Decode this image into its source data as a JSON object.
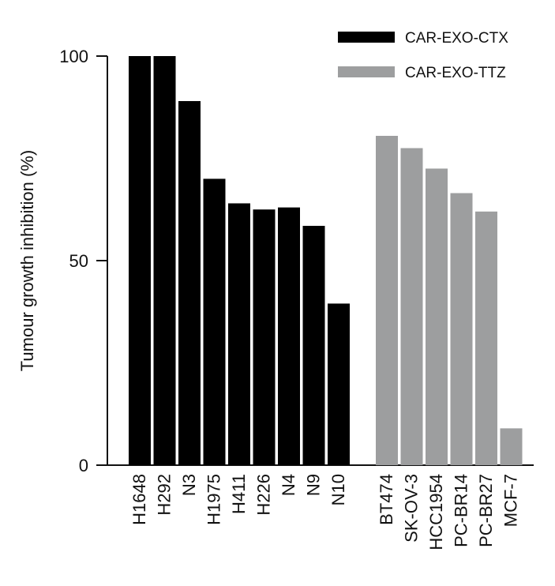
{
  "chart_data": {
    "type": "bar",
    "ylabel": "Tumour growth inhibition (%)",
    "xlabel": "",
    "ylim": [
      0,
      100
    ],
    "yticks": [
      0,
      50,
      100
    ],
    "legend_position": "top-right",
    "series": [
      {
        "name": "CAR-EXO-CTX",
        "color": "#000000",
        "categories": [
          "H1648",
          "H292",
          "N3",
          "H1975",
          "H411",
          "H226",
          "N4",
          "N9",
          "N10"
        ],
        "values": [
          100,
          100,
          89,
          70,
          64,
          62.5,
          63,
          58.5,
          39.5
        ]
      },
      {
        "name": "CAR-EXO-TTZ",
        "color": "#9d9e9f",
        "categories": [
          "BT474",
          "SK-OV-3",
          "HCC1954",
          "PC-BR14",
          "PC-BR27",
          "MCF-7"
        ],
        "values": [
          80.5,
          77.5,
          72.5,
          66.5,
          62,
          9
        ]
      }
    ]
  }
}
